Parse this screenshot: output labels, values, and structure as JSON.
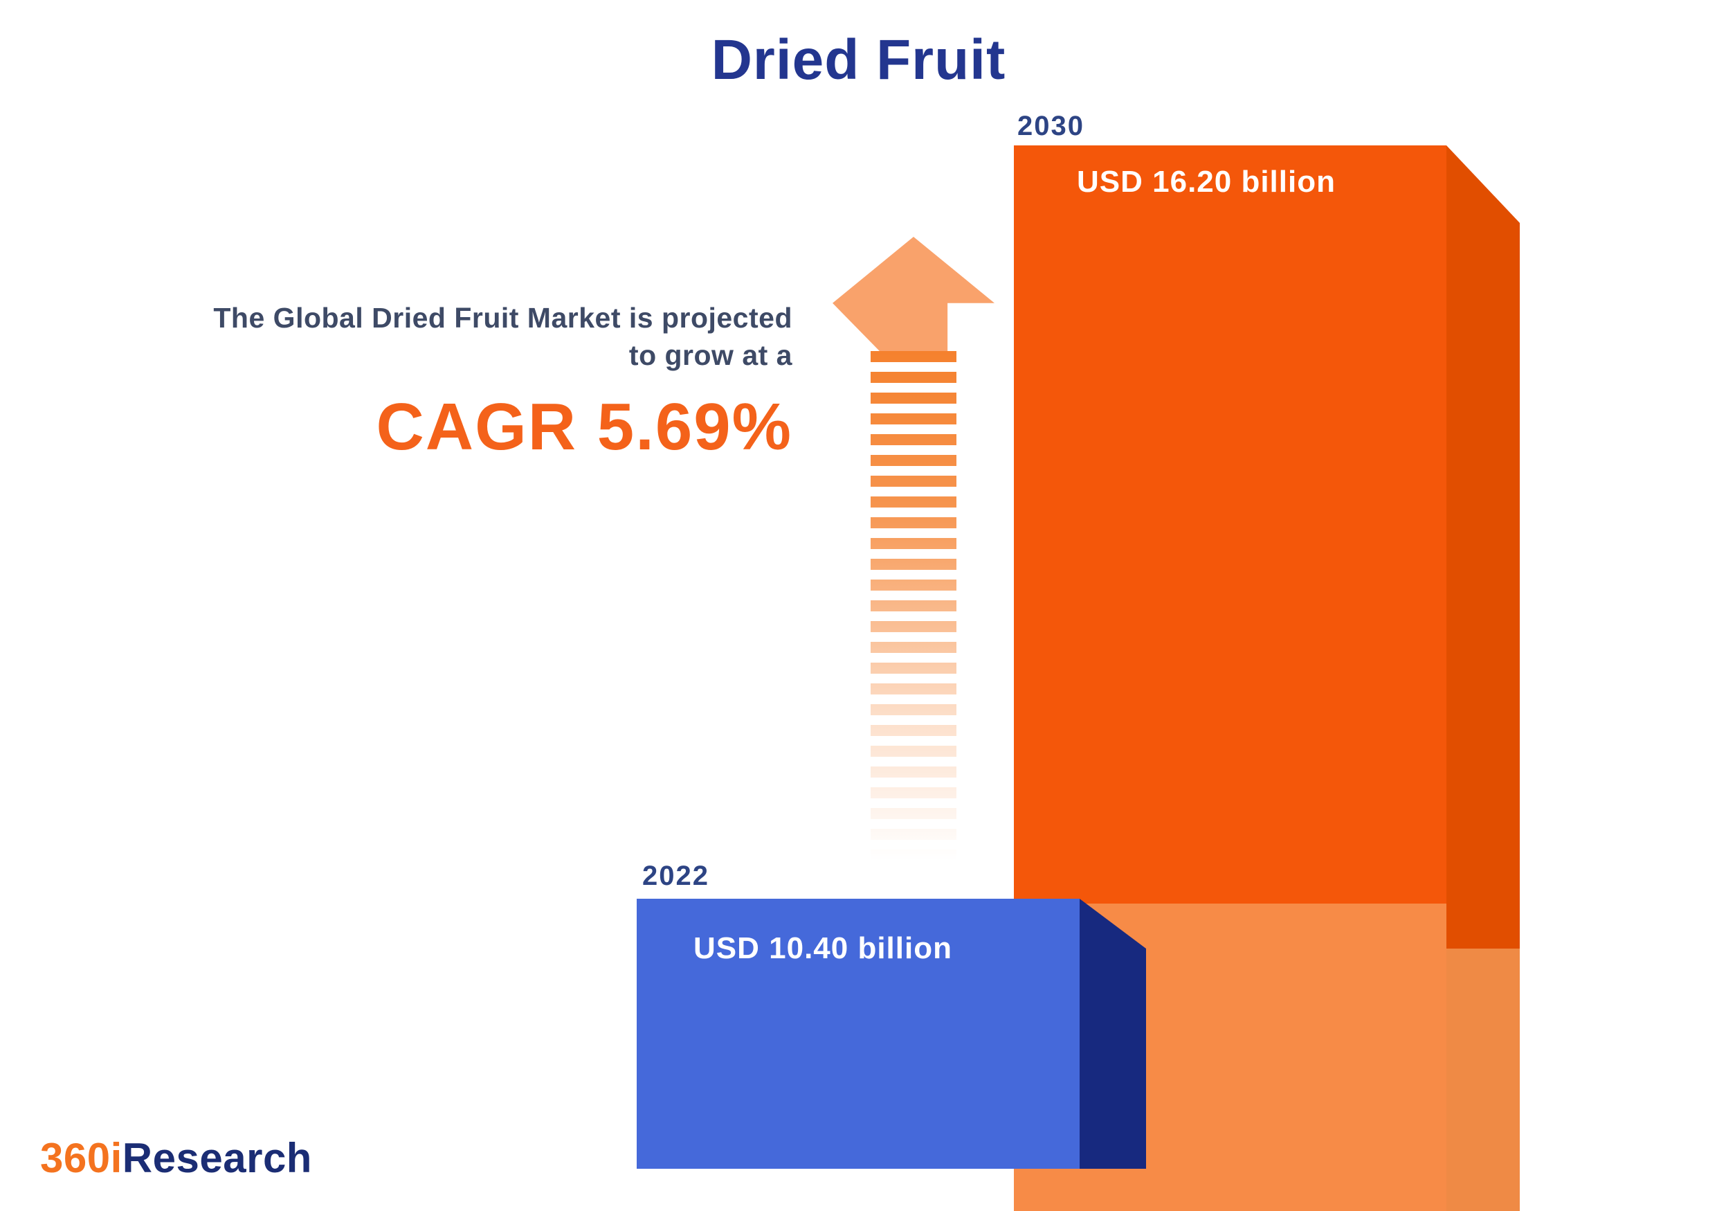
{
  "title": "Dried Fruit",
  "annotation": {
    "line1": "The Global Dried Fruit Market is projected",
    "line2": "to grow at a",
    "cagr": "CAGR 5.69%"
  },
  "bars": {
    "y2022": {
      "year": "2022",
      "value_label": "USD 10.40 billion",
      "front_color": "#4569da",
      "side_color": "#17297f"
    },
    "y2030": {
      "year": "2030",
      "value_label": "USD 16.20 billion",
      "front_color": "#f4570a",
      "side_color": "#e14e00",
      "faded_front_color": "#f78b47"
    }
  },
  "arrow": {
    "head_color": "#f9a26b",
    "dash_color": "#f5812e"
  },
  "logo": {
    "part1": "360i",
    "part2": "Research"
  },
  "colors": {
    "title_navy": "#23368f",
    "year_navy": "#2d4484",
    "annotation_gray": "#3e4a66",
    "cagr_orange": "#f4621a",
    "logo_orange": "#f4731f",
    "logo_navy": "#1b2d74"
  },
  "chart_data": {
    "type": "bar",
    "title": "Dried Fruit",
    "categories": [
      "2022",
      "2030"
    ],
    "values": [
      10.4,
      16.2
    ],
    "unit": "USD billion",
    "value_labels": [
      "USD 10.40 billion",
      "USD 16.20 billion"
    ],
    "annotation": "The Global Dried Fruit Market is projected to grow at a CAGR 5.69%",
    "cagr_percent": 5.69,
    "series_colors": [
      "#4569da",
      "#f4570a"
    ],
    "legend": "off",
    "grid": "off",
    "axes": "off",
    "style": "3d-infographic-bars"
  }
}
